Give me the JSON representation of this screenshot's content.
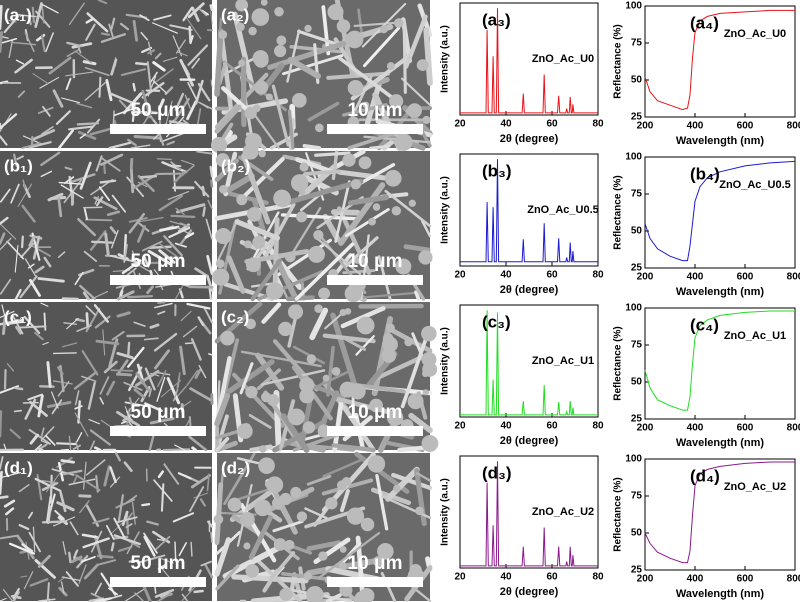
{
  "sem_panels": [
    {
      "label": "(a₁)",
      "scale_bar": "50 μm"
    },
    {
      "label": "(a₂)",
      "scale_bar": "10 μm"
    },
    {
      "label": "(b₁)",
      "scale_bar": "50 μm"
    },
    {
      "label": "(b₂)",
      "scale_bar": "10 μm"
    },
    {
      "label": "(c₁)",
      "scale_bar": "50 μm"
    },
    {
      "label": "(c₂)",
      "scale_bar": "10 μm"
    },
    {
      "label": "(d₁)",
      "scale_bar": "50 μm"
    },
    {
      "label": "(d₂)",
      "scale_bar": "10 μm"
    }
  ],
  "chart_data": [
    {
      "type": "line",
      "panel_label": "(a₃)",
      "xlabel": "2θ (degree)",
      "ylabel": "Intensity (a.u.)",
      "xlim": [
        20,
        80
      ],
      "xticks": [
        20,
        40,
        60,
        80
      ],
      "ylim": [
        0,
        105
      ],
      "x": [
        20,
        31.3,
        31.8,
        32.3,
        33.9,
        34.4,
        34.9,
        35.8,
        36.3,
        36.8,
        47,
        47.5,
        48,
        56.1,
        56.6,
        57.1,
        62.4,
        62.9,
        63.4,
        66,
        66.4,
        66.8,
        67.5,
        67.9,
        68.4,
        68.8,
        69.1,
        69.5,
        80
      ],
      "series": [
        {
          "name": "ZnO_Ac_U0",
          "color": "#e8141a",
          "values": [
            2,
            2,
            80,
            2,
            2,
            55,
            2,
            2,
            100,
            2,
            2,
            20,
            2,
            2,
            38,
            2,
            2,
            18,
            2,
            2,
            6,
            2,
            2,
            17,
            2,
            2,
            10,
            2,
            2
          ]
        }
      ]
    },
    {
      "type": "line",
      "panel_label": "(a₄)",
      "xlabel": "Wavelength (nm)",
      "ylabel": "Reflectance (%)",
      "xlim": [
        200,
        800
      ],
      "xticks": [
        200,
        400,
        600,
        800
      ],
      "ylim": [
        25,
        100
      ],
      "yticks": [
        25,
        50,
        75,
        100
      ],
      "x": [
        200,
        220,
        250,
        300,
        350,
        370,
        380,
        390,
        400,
        420,
        450,
        500,
        600,
        700,
        800
      ],
      "series": [
        {
          "name": "ZnO_Ac_U0",
          "color": "#e8141a",
          "values": [
            52,
            42,
            36,
            33,
            30,
            31,
            40,
            65,
            82,
            90,
            93,
            95,
            96,
            97,
            97
          ]
        }
      ]
    },
    {
      "type": "line",
      "panel_label": "(b₃)",
      "xlabel": "2θ (degree)",
      "ylabel": "Intensity (a.u.)",
      "xlim": [
        20,
        80
      ],
      "xticks": [
        20,
        40,
        60,
        80
      ],
      "ylim": [
        0,
        105
      ],
      "x": [
        20,
        31.3,
        31.8,
        32.3,
        33.9,
        34.4,
        34.9,
        35.8,
        36.3,
        36.8,
        47,
        47.5,
        48,
        56.1,
        56.6,
        57.1,
        62.4,
        62.9,
        63.4,
        66,
        66.4,
        66.8,
        67.5,
        67.9,
        68.4,
        68.8,
        69.1,
        69.5,
        80
      ],
      "series": [
        {
          "name": "ZnO_Ac_U0.5",
          "color": "#1c1cd0",
          "values": [
            4,
            4,
            60,
            4,
            4,
            55,
            4,
            4,
            100,
            4,
            4,
            25,
            4,
            4,
            40,
            4,
            4,
            26,
            4,
            4,
            8,
            4,
            4,
            22,
            4,
            4,
            14,
            4,
            4
          ]
        }
      ]
    },
    {
      "type": "line",
      "panel_label": "(b₄)",
      "xlabel": "Wavelength (nm)",
      "ylabel": "Reflectance (%)",
      "xlim": [
        200,
        800
      ],
      "xticks": [
        200,
        400,
        600,
        800
      ],
      "ylim": [
        25,
        100
      ],
      "yticks": [
        25,
        50,
        75,
        100
      ],
      "x": [
        200,
        220,
        250,
        300,
        350,
        370,
        380,
        390,
        400,
        420,
        450,
        500,
        600,
        700,
        800
      ],
      "series": [
        {
          "name": "ZnO_Ac_U0.5",
          "color": "#1c1cd0",
          "values": [
            55,
            45,
            38,
            33,
            30,
            30,
            40,
            55,
            70,
            80,
            86,
            90,
            94,
            96,
            97
          ]
        }
      ]
    },
    {
      "type": "line",
      "panel_label": "(c₃)",
      "xlabel": "2θ (degree)",
      "ylabel": "Intensity (a.u.)",
      "xlim": [
        20,
        80
      ],
      "xticks": [
        20,
        40,
        60,
        80
      ],
      "ylim": [
        0,
        105
      ],
      "x": [
        20,
        31.3,
        31.8,
        32.3,
        33.9,
        34.4,
        34.9,
        35.8,
        36.3,
        36.8,
        47,
        47.5,
        48,
        56.1,
        56.6,
        57.1,
        62.4,
        62.9,
        63.4,
        66,
        66.4,
        66.8,
        67.5,
        67.9,
        68.4,
        68.8,
        69.1,
        69.5,
        80
      ],
      "series": [
        {
          "name": "ZnO_Ac_U1",
          "color": "#22dd22",
          "values": [
            2,
            2,
            100,
            2,
            2,
            35,
            2,
            2,
            98,
            2,
            2,
            15,
            2,
            2,
            30,
            2,
            2,
            14,
            2,
            2,
            5,
            2,
            2,
            15,
            2,
            2,
            9,
            2,
            2
          ]
        }
      ]
    },
    {
      "type": "line",
      "panel_label": "(c₄)",
      "xlabel": "Wavelength (nm)",
      "ylabel": "Reflectance (%)",
      "xlim": [
        200,
        800
      ],
      "xticks": [
        200,
        400,
        600,
        800
      ],
      "ylim": [
        25,
        100
      ],
      "yticks": [
        25,
        50,
        75,
        100
      ],
      "x": [
        200,
        220,
        250,
        300,
        350,
        370,
        380,
        390,
        400,
        420,
        450,
        500,
        600,
        700,
        800
      ],
      "series": [
        {
          "name": "ZnO_Ac_U1",
          "color": "#22dd22",
          "values": [
            58,
            46,
            38,
            34,
            31,
            31,
            40,
            62,
            80,
            88,
            92,
            95,
            97,
            98,
            98
          ]
        }
      ]
    },
    {
      "type": "line",
      "panel_label": "(d₃)",
      "xlabel": "2θ (degree)",
      "ylabel": "Intensity (a.u.)",
      "xlim": [
        20,
        80
      ],
      "xticks": [
        20,
        40,
        60,
        80
      ],
      "ylim": [
        0,
        105
      ],
      "x": [
        20,
        31.3,
        31.8,
        32.3,
        33.9,
        34.4,
        34.9,
        35.8,
        36.3,
        36.8,
        47,
        47.5,
        48,
        56.1,
        56.6,
        57.1,
        62.4,
        62.9,
        63.4,
        66,
        66.4,
        66.8,
        67.5,
        67.9,
        68.4,
        68.8,
        69.1,
        69.5,
        80
      ],
      "series": [
        {
          "name": "ZnO_Ac_U2",
          "color": "#8b1a8b",
          "values": [
            2,
            2,
            80,
            2,
            2,
            40,
            2,
            2,
            100,
            2,
            2,
            20,
            2,
            2,
            38,
            2,
            2,
            20,
            2,
            2,
            6,
            2,
            2,
            20,
            2,
            2,
            12,
            2,
            2
          ]
        }
      ]
    },
    {
      "type": "line",
      "panel_label": "(d₄)",
      "xlabel": "Wavelength (nm)",
      "ylabel": "Reflectance (%)",
      "xlim": [
        200,
        800
      ],
      "xticks": [
        200,
        400,
        600,
        800
      ],
      "ylim": [
        25,
        100
      ],
      "yticks": [
        25,
        50,
        75,
        100
      ],
      "x": [
        200,
        220,
        250,
        300,
        350,
        370,
        380,
        390,
        400,
        420,
        450,
        500,
        600,
        700,
        800
      ],
      "series": [
        {
          "name": "ZnO_Ac_U2",
          "color": "#8b1a8b",
          "values": [
            50,
            43,
            37,
            33,
            30,
            30,
            38,
            62,
            82,
            90,
            93,
            95,
            97,
            98,
            98
          ]
        }
      ]
    }
  ]
}
